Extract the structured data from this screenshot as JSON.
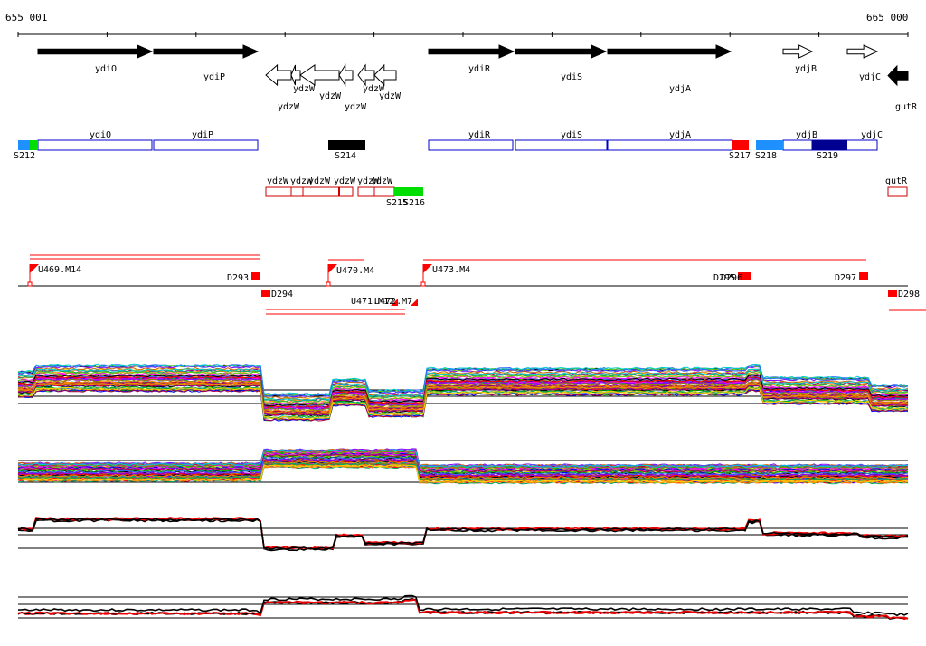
{
  "scale": {
    "start_label": "655 001",
    "end_label": "665 000"
  },
  "genes": [
    {
      "label": "ydiO",
      "style": "filled",
      "dir": "right"
    },
    {
      "label": "ydiP",
      "style": "filled",
      "dir": "right"
    },
    {
      "label": "ydzW",
      "style": "open",
      "dir": "left"
    },
    {
      "label": "ydzW",
      "style": "open",
      "dir": "left"
    },
    {
      "label": "ydzW",
      "style": "open",
      "dir": "left"
    },
    {
      "label": "ydzW",
      "style": "open",
      "dir": "left"
    },
    {
      "label": "ydzW",
      "style": "open",
      "dir": "left"
    },
    {
      "label": "ydzW",
      "style": "open",
      "dir": "left"
    },
    {
      "label": "ydiR",
      "style": "filled",
      "dir": "right"
    },
    {
      "label": "ydiS",
      "style": "filled",
      "dir": "right"
    },
    {
      "label": "ydjA",
      "style": "filled",
      "dir": "right"
    },
    {
      "label": "ydjB",
      "style": "open",
      "dir": "right"
    },
    {
      "label": "ydjC",
      "style": "open",
      "dir": "right"
    },
    {
      "label": "gutR",
      "style": "filled",
      "dir": "left"
    }
  ],
  "segment_track": {
    "blue_box_labels": [
      "ydiO",
      "ydiP",
      "ydiR",
      "ydiS",
      "ydjA",
      "ydjB",
      "ydjC"
    ],
    "red_box_labels": [
      "ydzW",
      "ydzW",
      "ydzW",
      "ydzW",
      "ydzW",
      "ydzW",
      "gutR"
    ],
    "segments": [
      {
        "label": "S212",
        "color": "#1e90ff"
      },
      {
        "label": "S214",
        "color": "#000000"
      },
      {
        "label": "S215",
        "color": "#00dd00"
      },
      {
        "label": "S216",
        "color": "#00dd00"
      },
      {
        "label": "S217",
        "color": "#ff0000"
      },
      {
        "label": "S218",
        "color": "#1e90ff"
      },
      {
        "label": "S219",
        "color": "#000090"
      }
    ]
  },
  "features": [
    {
      "label": "U469.M14",
      "kind": "up"
    },
    {
      "label": "D293",
      "kind": "down"
    },
    {
      "label": "D294",
      "kind": "down"
    },
    {
      "label": "U470.M4",
      "kind": "up"
    },
    {
      "label": "U471.M12",
      "kind": "up"
    },
    {
      "label": "U472.M7",
      "kind": "up"
    },
    {
      "label": "U473.M4",
      "kind": "up"
    },
    {
      "label": "D295",
      "kind": "down"
    },
    {
      "label": "D296",
      "kind": "down"
    },
    {
      "label": "D297",
      "kind": "down"
    },
    {
      "label": "D298",
      "kind": "down"
    }
  ],
  "colors": {
    "gene_fill": "#000000",
    "blue_outline": "#0000cc",
    "red_outline": "#cc0000",
    "feature_red": "#ff0000",
    "profile_red": "#ee0000"
  }
}
